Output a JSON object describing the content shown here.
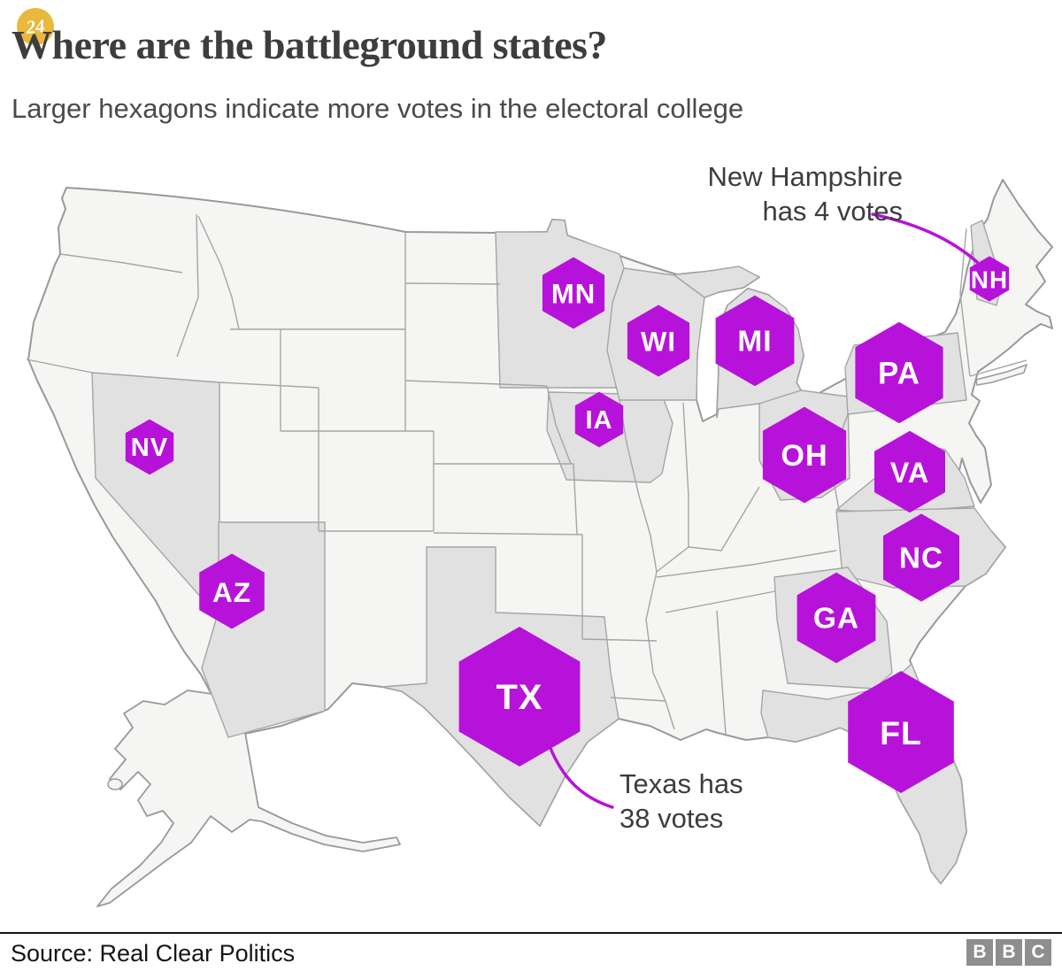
{
  "header": {
    "badge": "24",
    "title": "Where are the battleground states?",
    "subtitle": "Larger hexagons indicate more votes in the electoral college"
  },
  "annotations": {
    "new_hampshire": {
      "lines": [
        "New Hampshire",
        "has 4 votes"
      ]
    },
    "texas": {
      "lines": [
        "Texas has",
        "38 votes"
      ]
    }
  },
  "footer": {
    "source": "Source: Real Clear Politics",
    "bbc": [
      "B",
      "B",
      "C"
    ]
  },
  "colors": {
    "accent": "#b712da",
    "hex_label": "#ffffff",
    "state_default": "#f5f5f4",
    "state_highlight": "#e2e1e2",
    "state_border": "#a5a5a5",
    "outline": "#999999",
    "title_text": "#3d3d3d",
    "subtitle_text": "#4a4a4a",
    "annotation_text": "#3d3d3d",
    "badge_bg": "#e9b83c",
    "bbc_square": "#8e8e8e"
  },
  "chart_data": {
    "type": "cartogram-map",
    "title": "Where are the battleground states?",
    "subtitle": "Larger hexagons indicate more votes in the electoral college",
    "unit": "electoral college votes",
    "size_encoding": "hexagon area proportional to electoral college votes",
    "source": "Real Clear Politics",
    "states": [
      {
        "code": "NV",
        "name": "Nevada",
        "votes": 6
      },
      {
        "code": "AZ",
        "name": "Arizona",
        "votes": 11
      },
      {
        "code": "TX",
        "name": "Texas",
        "votes": 38
      },
      {
        "code": "MN",
        "name": "Minnesota",
        "votes": 10
      },
      {
        "code": "IA",
        "name": "Iowa",
        "votes": 6
      },
      {
        "code": "WI",
        "name": "Wisconsin",
        "votes": 10
      },
      {
        "code": "MI",
        "name": "Michigan",
        "votes": 16
      },
      {
        "code": "OH",
        "name": "Ohio",
        "votes": 18
      },
      {
        "code": "PA",
        "name": "Pennsylvania",
        "votes": 20
      },
      {
        "code": "NH",
        "name": "New Hampshire",
        "votes": 4
      },
      {
        "code": "VA",
        "name": "Virginia",
        "votes": 13
      },
      {
        "code": "NC",
        "name": "North Carolina",
        "votes": 15
      },
      {
        "code": "GA",
        "name": "Georgia",
        "votes": 16
      },
      {
        "code": "FL",
        "name": "Florida",
        "votes": 29
      }
    ],
    "callouts": [
      {
        "state": "NH",
        "text": "New Hampshire has 4 votes"
      },
      {
        "state": "TX",
        "text": "Texas has 38 votes"
      }
    ]
  }
}
